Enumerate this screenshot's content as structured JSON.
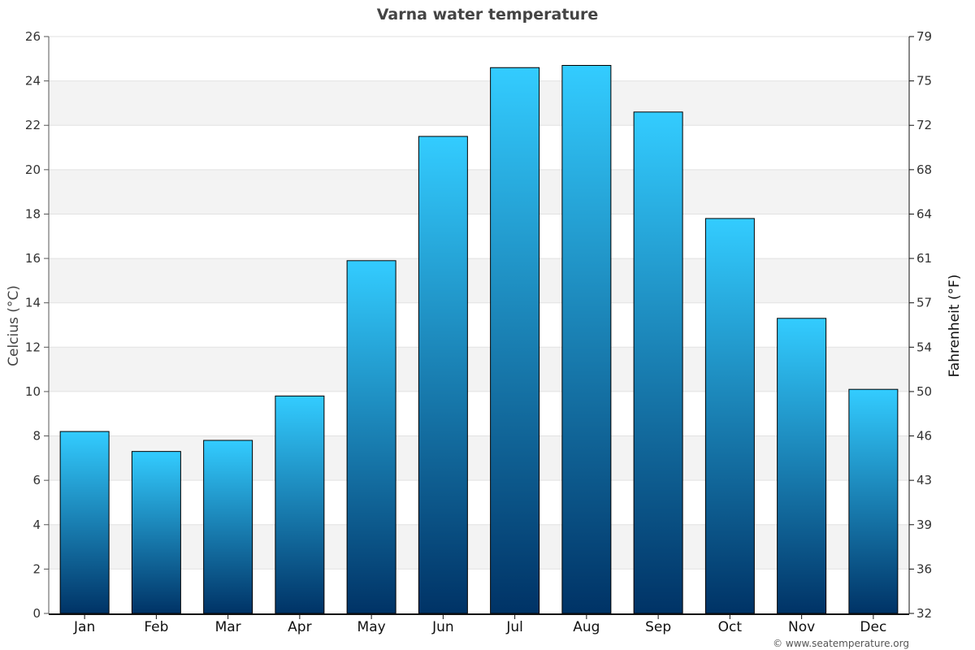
{
  "chart_data": {
    "type": "bar",
    "title": "Varna water temperature",
    "categories": [
      "Jan",
      "Feb",
      "Mar",
      "Apr",
      "May",
      "Jun",
      "Jul",
      "Aug",
      "Sep",
      "Oct",
      "Nov",
      "Dec"
    ],
    "values": [
      8.2,
      7.3,
      7.8,
      9.8,
      15.9,
      21.5,
      24.6,
      24.7,
      22.6,
      17.8,
      13.3,
      10.1
    ],
    "ylabel": "Celcius (°C)",
    "ylabel_right": "Fahrenheit (°F)",
    "ylim": [
      0,
      26
    ],
    "yticks": [
      0,
      2,
      4,
      6,
      8,
      10,
      12,
      14,
      16,
      18,
      20,
      22,
      24,
      26
    ],
    "yticks_right": [
      "32",
      "36",
      "39",
      "43",
      "46",
      "50",
      "54",
      "57",
      "61",
      "64",
      "68",
      "72",
      "75",
      "79"
    ],
    "grid": true,
    "alternating_bands": true,
    "bar_color_top": "#33ccff",
    "bar_color_bottom": "#003366",
    "band_color": "#f3f3f3",
    "credit": "© www.seatemperature.org"
  }
}
